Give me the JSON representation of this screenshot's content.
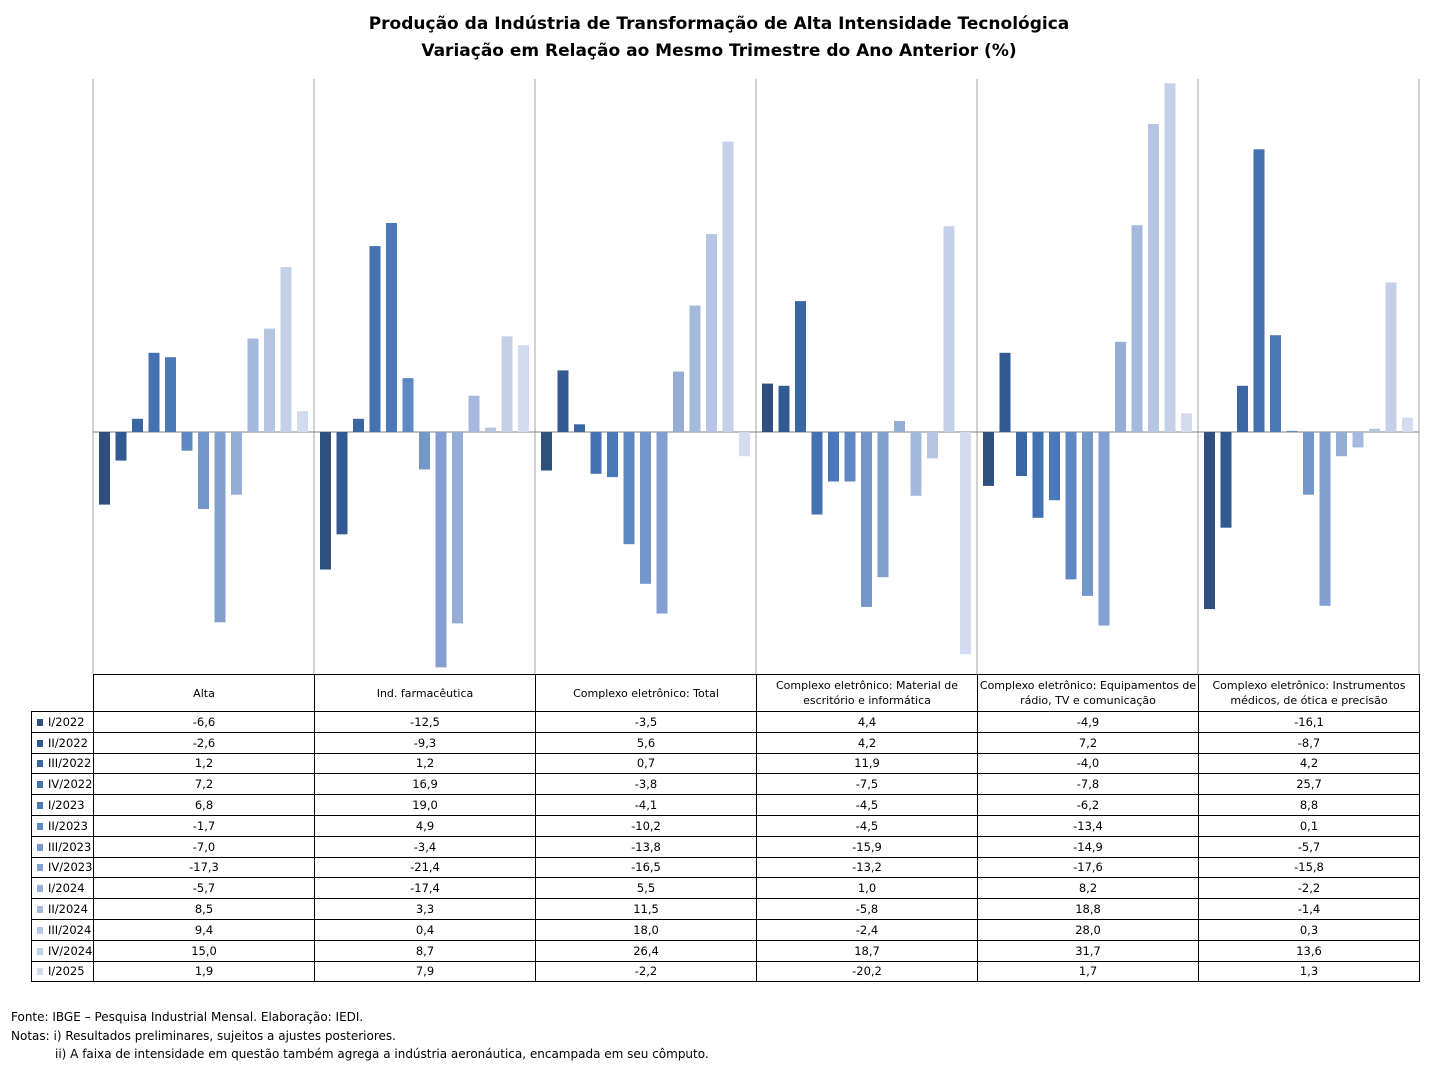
{
  "title_line1": "Produção da Indústria de Transformação de Alta Intensidade Tecnológica",
  "title_line2": "Variação em Relação ao Mesmo Trimestre do Ano Anterior (%)",
  "footer": {
    "source": "Fonte: IBGE – Pesquisa Industrial Mensal. Elaboração: IEDI.",
    "note1": "Notas: i) Resultados preliminares, sujeitos a ajustes posteriores.",
    "note2": "ii) A faixa de intensidade em questão também agrega a indústria aeronáutica, encampada em seu cômputo."
  },
  "chart_data": {
    "type": "bar",
    "title": "Produção da Indústria de Transformação de Alta Intensidade Tecnológica — Variação em Relação ao Mesmo Trimestre do Ano Anterior (%)",
    "categories": [
      "Alta",
      "Ind. farmacêutica",
      "Complexo eletrônico: Total",
      "Complexo eletrônico: Material de escritório e informática",
      "Complexo eletrônico: Equipamentos de rádio, TV e comunicação",
      "Complexo eletrônico: Instrumentos médicos, de ótica e precisão"
    ],
    "ylim": [
      -21.6,
      31.7
    ],
    "grid": false,
    "legend": "table-left",
    "series": [
      {
        "name": "I/2022",
        "color": "#2f4f7f",
        "values": [
          -6.6,
          -12.5,
          -3.5,
          4.4,
          -4.9,
          -16.1
        ]
      },
      {
        "name": "II/2022",
        "color": "#335a90",
        "values": [
          -2.6,
          -9.3,
          5.6,
          4.2,
          7.2,
          -8.7
        ]
      },
      {
        "name": "III/2022",
        "color": "#3a66a3",
        "values": [
          1.2,
          1.2,
          0.7,
          11.9,
          -4.0,
          4.2
        ]
      },
      {
        "name": "IV/2022",
        "color": "#4471b0",
        "values": [
          7.2,
          16.9,
          -3.8,
          -7.5,
          -7.8,
          25.7
        ]
      },
      {
        "name": "I/2023",
        "color": "#4a78b8",
        "values": [
          6.8,
          19.0,
          -4.1,
          -4.5,
          -6.2,
          8.8
        ]
      },
      {
        "name": "II/2023",
        "color": "#5e88c2",
        "values": [
          -1.7,
          4.9,
          -10.2,
          -4.5,
          -13.4,
          0.1
        ]
      },
      {
        "name": "III/2023",
        "color": "#7397c9",
        "values": [
          -7.0,
          -3.4,
          -13.8,
          -15.9,
          -14.9,
          -5.7
        ]
      },
      {
        "name": "IV/2023",
        "color": "#829fcf",
        "values": [
          -17.3,
          -21.4,
          -16.5,
          -13.2,
          -17.6,
          -15.8
        ]
      },
      {
        "name": "I/2024",
        "color": "#94add5",
        "values": [
          -5.7,
          -17.4,
          5.5,
          1.0,
          8.2,
          -2.2
        ]
      },
      {
        "name": "II/2024",
        "color": "#a5b9dc",
        "values": [
          8.5,
          3.3,
          11.5,
          -5.8,
          18.8,
          -1.4
        ]
      },
      {
        "name": "III/2024",
        "color": "#b5c5e2",
        "values": [
          9.4,
          0.4,
          18.0,
          -2.4,
          28.0,
          0.3
        ]
      },
      {
        "name": "IV/2024",
        "color": "#c4d0e8",
        "values": [
          15.0,
          8.7,
          26.4,
          18.7,
          31.7,
          13.6
        ]
      },
      {
        "name": "I/2025",
        "color": "#d3dcee",
        "values": [
          1.9,
          7.9,
          -2.2,
          -20.2,
          1.7,
          1.3
        ]
      }
    ],
    "table": {
      "rows": [
        [
          "-6,6",
          "-12,5",
          "-3,5",
          "4,4",
          "-4,9",
          "-16,1"
        ],
        [
          "-2,6",
          "-9,3",
          "5,6",
          "4,2",
          "7,2",
          "-8,7"
        ],
        [
          "1,2",
          "1,2",
          "0,7",
          "11,9",
          "-4,0",
          "4,2"
        ],
        [
          "7,2",
          "16,9",
          "-3,8",
          "-7,5",
          "-7,8",
          "25,7"
        ],
        [
          "6,8",
          "19,0",
          "-4,1",
          "-4,5",
          "-6,2",
          "8,8"
        ],
        [
          "-1,7",
          "4,9",
          "-10,2",
          "-4,5",
          "-13,4",
          "0,1"
        ],
        [
          "-7,0",
          "-3,4",
          "-13,8",
          "-15,9",
          "-14,9",
          "-5,7"
        ],
        [
          "-17,3",
          "-21,4",
          "-16,5",
          "-13,2",
          "-17,6",
          "-15,8"
        ],
        [
          "-5,7",
          "-17,4",
          "5,5",
          "1,0",
          "8,2",
          "-2,2"
        ],
        [
          "8,5",
          "3,3",
          "11,5",
          "-5,8",
          "18,8",
          "-1,4"
        ],
        [
          "9,4",
          "0,4",
          "18,0",
          "-2,4",
          "28,0",
          "0,3"
        ],
        [
          "15,0",
          "8,7",
          "26,4",
          "18,7",
          "31,7",
          "13,6"
        ],
        [
          "1,9",
          "7,9",
          "-2,2",
          "-20,2",
          "1,7",
          "1,3"
        ]
      ]
    }
  }
}
